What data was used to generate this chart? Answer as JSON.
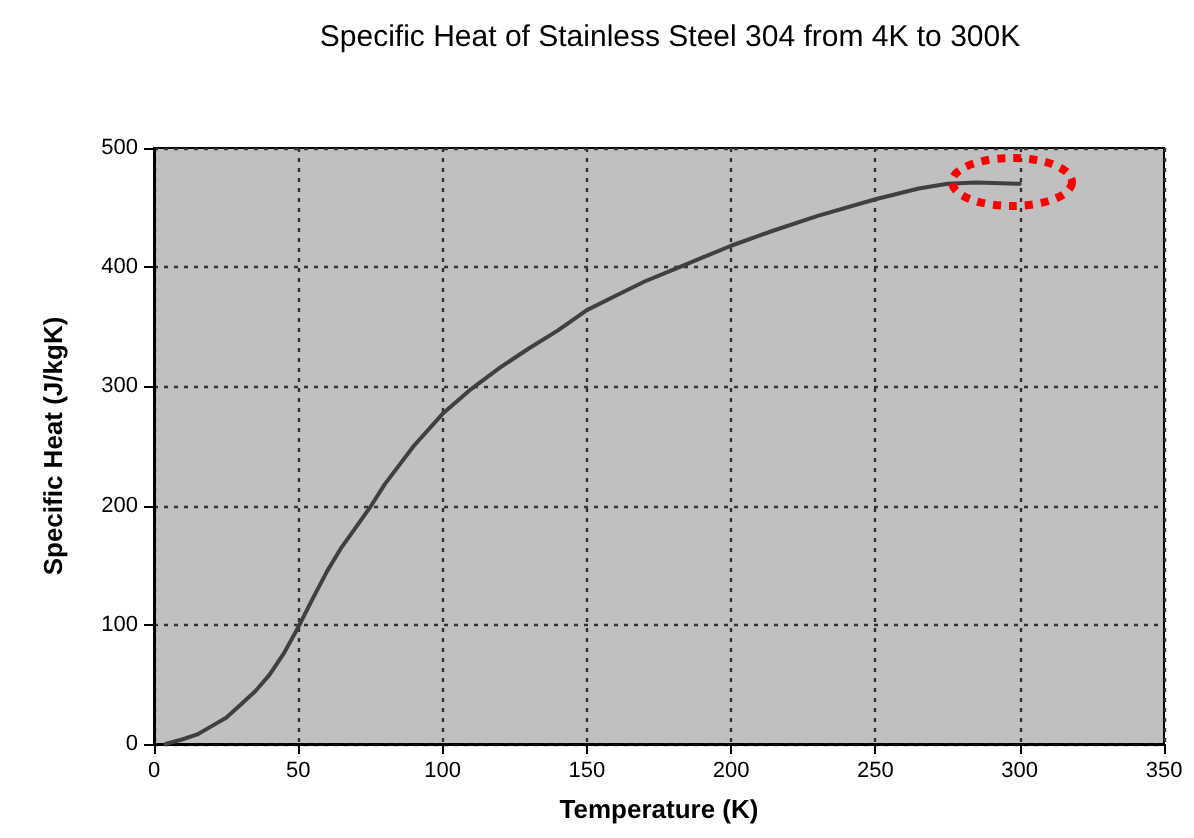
{
  "chart_data": {
    "type": "line",
    "title": "Specific Heat of Stainless Steel 304 from 4K to 300K",
    "xlabel": "Temperature (K)",
    "ylabel": "Specific Heat (J/kgK)",
    "x": [
      4,
      10,
      15,
      20,
      25,
      30,
      35,
      40,
      45,
      50,
      55,
      60,
      65,
      70,
      75,
      80,
      90,
      100,
      110,
      120,
      130,
      140,
      150,
      160,
      170,
      180,
      190,
      200,
      215,
      230,
      250,
      265,
      275,
      285,
      300
    ],
    "series": [
      {
        "color": "#404040",
        "values": [
          0,
          4,
          8,
          15,
          22,
          33,
          44,
          58,
          76,
          98,
          122,
          145,
          165,
          182,
          199,
          218,
          250,
          277,
          298,
          316,
          332,
          347,
          364,
          376,
          388,
          398,
          408,
          418,
          431,
          443,
          457,
          466,
          470,
          471,
          470
        ]
      }
    ],
    "xlim": [
      0,
      350
    ],
    "xticks": [
      0,
      50,
      100,
      150,
      200,
      250,
      300,
      350
    ],
    "ylim": [
      0,
      500
    ],
    "yticks": [
      0,
      100,
      200,
      300,
      400,
      500
    ],
    "grid": true,
    "marker": "none",
    "line_style": "solid"
  }
}
